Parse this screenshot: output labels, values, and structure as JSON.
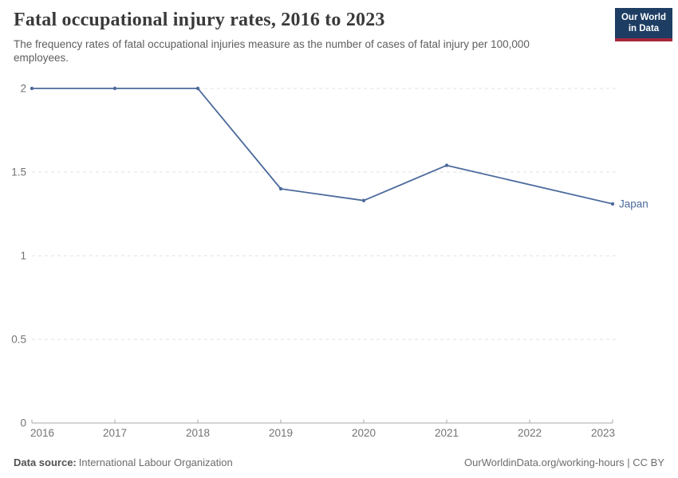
{
  "header": {
    "title": "Fatal occupational injury rates, 2016 to 2023",
    "subtitle": "The frequency rates of fatal occupational injuries measure as the number of cases of fatal injury per 100,000 employees.",
    "logo": {
      "line1": "Our World",
      "line2": "in Data",
      "bg_color": "#1d3d63",
      "accent_color": "#a6263c"
    }
  },
  "chart_data": {
    "type": "line",
    "title": "Fatal occupational injury rates, 2016 to 2023",
    "xlabel": "",
    "ylabel": "",
    "xlim": [
      2016,
      2023
    ],
    "ylim": [
      0,
      2
    ],
    "x_ticks": [
      2016,
      2017,
      2018,
      2019,
      2020,
      2021,
      2022,
      2023
    ],
    "y_ticks": [
      0,
      0.5,
      1,
      1.5,
      2
    ],
    "grid": "horizontal-dashed",
    "legend_position": "end-of-line-label",
    "series": [
      {
        "name": "Japan",
        "color": "#4C6A9C",
        "points": [
          {
            "year": 2016,
            "value": 2
          },
          {
            "year": 2017,
            "value": 2
          },
          {
            "year": 2018,
            "value": 2
          },
          {
            "year": 2019,
            "value": 1.4
          },
          {
            "year": 2020,
            "value": 1.33
          },
          {
            "year": 2021,
            "value": 1.54
          },
          {
            "year": 2023,
            "value": 1.31
          }
        ]
      }
    ],
    "colors": {
      "grid": "#e0e0e0",
      "axis": "#a9a9a9",
      "tick_label": "#737373"
    }
  },
  "footer": {
    "source_label": "Data source:",
    "source_value": "International Labour Organization",
    "rights": "OurWorldinData.org/working-hours | CC BY"
  }
}
